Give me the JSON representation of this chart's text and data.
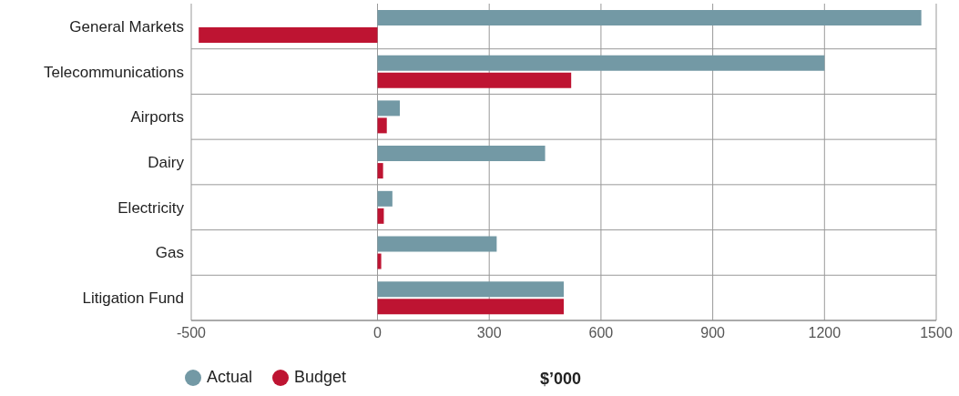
{
  "chart_data": {
    "type": "bar",
    "orientation": "horizontal",
    "xlabel": "$’000",
    "categories": [
      "General Markets",
      "Telecommunications",
      "Airports",
      "Dairy",
      "Electricity",
      "Gas",
      "Litigation Fund"
    ],
    "series": [
      {
        "name": "Actual",
        "color": "#7399a5",
        "values": [
          1460,
          1200,
          60,
          450,
          40,
          320,
          500
        ]
      },
      {
        "name": "Budget",
        "color": "#be1432",
        "values": [
          -480,
          520,
          25,
          15,
          17,
          10,
          500
        ]
      }
    ],
    "xlim": [
      -500,
      1500
    ],
    "xticks": [
      -500,
      0,
      300,
      600,
      900,
      1200,
      1500
    ],
    "grid": true,
    "legend": "bottom left"
  }
}
